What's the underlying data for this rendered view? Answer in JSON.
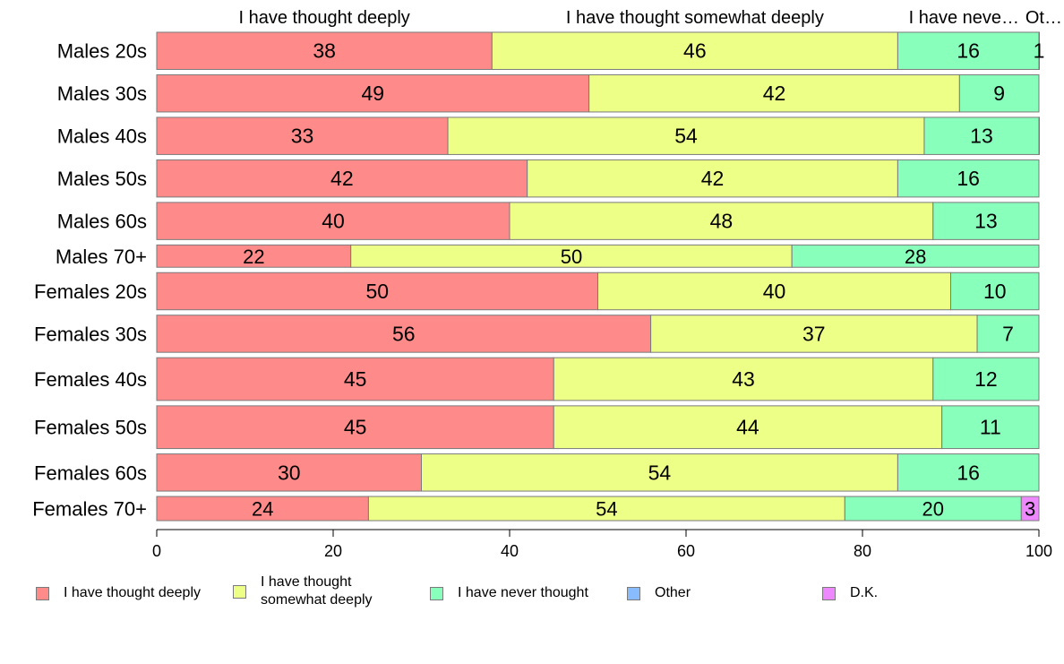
{
  "chart_data": {
    "type": "bar",
    "orientation": "horizontal",
    "stacked": true,
    "top_labels": [
      "I have thought deeply",
      "I have thought somewhat deeply",
      "I have neve…",
      "Ot…"
    ],
    "categories": [
      "Males 20s",
      "Males 30s",
      "Males 40s",
      "Males 50s",
      "Males 60s",
      "Males 70+",
      "Females 20s",
      "Females 30s",
      "Females 40s",
      "Females 50s",
      "Females 60s",
      "Females 70+"
    ],
    "series": [
      {
        "name": "I have thought deeply",
        "color": "#ff8a8a",
        "values": [
          38,
          49,
          33,
          42,
          40,
          22,
          50,
          56,
          45,
          45,
          30,
          24
        ]
      },
      {
        "name": "I have thought somewhat deeply",
        "color": "#eeff88",
        "values": [
          46,
          42,
          54,
          42,
          48,
          50,
          40,
          37,
          43,
          44,
          54,
          54
        ]
      },
      {
        "name": "I have never thought",
        "color": "#88ffbb",
        "values": [
          16,
          9,
          13,
          16,
          13,
          28,
          10,
          7,
          12,
          11,
          16,
          20
        ]
      },
      {
        "name": "Other",
        "color": "#88bbff",
        "values": [
          0,
          0,
          0.5,
          0,
          0,
          0,
          0,
          0,
          0,
          0,
          0,
          0
        ]
      },
      {
        "name": "D.K.",
        "color": "#ee88ff",
        "values": [
          1,
          0,
          0,
          0,
          0,
          0,
          0,
          0,
          0,
          0,
          0,
          3
        ]
      }
    ],
    "bar_labels": [
      [
        "38",
        "46",
        "16",
        "",
        "1"
      ],
      [
        "49",
        "42",
        "9",
        "",
        ""
      ],
      [
        "33",
        "54",
        "13",
        "",
        ""
      ],
      [
        "42",
        "42",
        "16",
        "",
        ""
      ],
      [
        "40",
        "48",
        "13",
        "",
        ""
      ],
      [
        "22",
        "50",
        "28",
        "",
        ""
      ],
      [
        "50",
        "40",
        "10",
        "",
        ""
      ],
      [
        "56",
        "37",
        "7",
        "",
        ""
      ],
      [
        "45",
        "43",
        "12",
        "",
        ""
      ],
      [
        "45",
        "44",
        "11",
        "",
        ""
      ],
      [
        "30",
        "54",
        "16",
        "",
        ""
      ],
      [
        "24",
        "54",
        "20",
        "",
        "3"
      ]
    ],
    "row_weights": [
      1.0,
      1.0,
      1.0,
      1.0,
      1.0,
      0.6,
      1.0,
      1.0,
      1.15,
      1.15,
      1.0,
      0.65
    ],
    "xlim": [
      0,
      100
    ],
    "xticks": [
      0,
      20,
      40,
      60,
      80,
      100
    ],
    "xlabel": "",
    "ylabel": "",
    "grid": false,
    "legend_position": "bottom"
  },
  "legend": {
    "items": [
      {
        "label": "I have thought deeply",
        "color": "#ff8a8a"
      },
      {
        "label": "I have thought somewhat deeply",
        "color": "#eeff88"
      },
      {
        "label": "I have never thought",
        "color": "#88ffbb"
      },
      {
        "label": "Other",
        "color": "#88bbff"
      },
      {
        "label": "D.K.",
        "color": "#ee88ff"
      }
    ]
  }
}
